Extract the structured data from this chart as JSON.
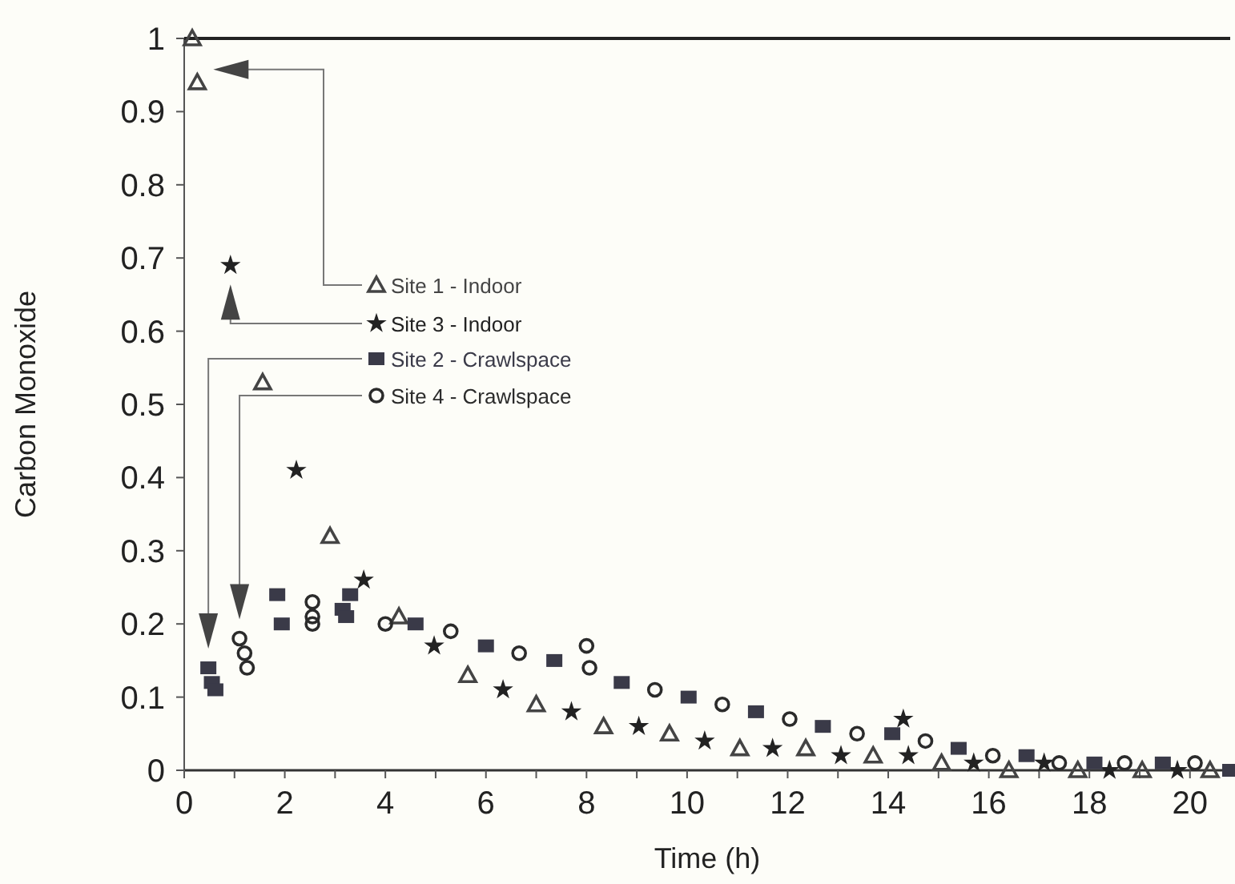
{
  "chart_data": {
    "type": "scatter",
    "xlabel": "Time (h)",
    "ylabel": "Carbon Monoxide",
    "xlim": [
      0,
      20.8
    ],
    "ylim": [
      0,
      1
    ],
    "xticks": [
      0,
      {
        "value": 1,
        "label": null
      },
      2,
      {
        "value": 3,
        "label": null
      },
      4,
      {
        "value": 5,
        "label": null
      },
      6,
      {
        "value": 7,
        "label": null
      },
      8,
      {
        "value": 9,
        "label": null
      },
      10,
      {
        "value": 11,
        "label": null
      },
      12,
      {
        "value": 13,
        "label": null
      },
      14,
      {
        "value": 15,
        "label": null
      },
      16,
      {
        "value": 17,
        "label": null
      },
      18,
      {
        "value": 19,
        "label": null
      },
      20
    ],
    "yticks": [
      0,
      0.1,
      0.2,
      0.3,
      0.4,
      0.5,
      0.6,
      0.7,
      0.8,
      0.9,
      1
    ],
    "grid": false,
    "legend": "left",
    "series": [
      {
        "name": "Site 1 - Indoor",
        "color": "#444444",
        "marker": "triangle",
        "x": [
          0.26,
          0.16,
          1.56,
          2.9,
          4.27,
          5.64,
          7.0,
          8.34,
          9.65,
          11.05,
          12.36,
          13.7,
          15.06,
          16.4,
          17.77,
          19.05,
          20.4
        ],
        "values": [
          0.94,
          1.0,
          0.53,
          0.32,
          0.21,
          0.13,
          0.09,
          0.06,
          0.05,
          0.03,
          0.03,
          0.02,
          0.01,
          0.0,
          0.0,
          0.0,
          0.0
        ]
      },
      {
        "name": "Site 3 - Indoor",
        "color": "#222222",
        "marker": "star",
        "x": [
          0.92,
          2.23,
          3.57,
          4.97,
          6.34,
          7.7,
          9.04,
          10.35,
          11.7,
          13.06,
          14.4,
          14.3,
          15.7,
          17.1,
          18.4,
          19.75
        ],
        "values": [
          0.69,
          0.41,
          0.26,
          0.17,
          0.11,
          0.08,
          0.06,
          0.04,
          0.03,
          0.02,
          0.02,
          0.07,
          0.01,
          0.01,
          0.0,
          0.0
        ]
      },
      {
        "name": "Site 2 - Crawlspace",
        "color": "#3a3a48",
        "marker": "square",
        "x": [
          0.48,
          0.55,
          0.62,
          1.85,
          1.94,
          3.15,
          3.3,
          3.22,
          4.6,
          6.0,
          7.36,
          8.7,
          10.03,
          11.37,
          12.7,
          14.08,
          15.4,
          16.75,
          18.1,
          19.46,
          20.8
        ],
        "values": [
          0.14,
          0.12,
          0.11,
          0.24,
          0.2,
          0.22,
          0.24,
          0.21,
          0.2,
          0.17,
          0.15,
          0.12,
          0.1,
          0.08,
          0.06,
          0.05,
          0.03,
          0.02,
          0.01,
          0.01,
          0.0
        ]
      },
      {
        "name": "Site 4 - Crawlspace",
        "color": "#2b2b2b",
        "marker": "circle",
        "x": [
          1.1,
          1.2,
          1.25,
          2.55,
          2.55,
          2.55,
          4.0,
          5.3,
          6.66,
          8.06,
          8.0,
          9.36,
          10.7,
          12.04,
          13.38,
          14.74,
          16.08,
          17.4,
          18.7,
          20.1
        ],
        "values": [
          0.18,
          0.16,
          0.14,
          0.23,
          0.21,
          0.2,
          0.2,
          0.19,
          0.16,
          0.14,
          0.17,
          0.11,
          0.09,
          0.07,
          0.05,
          0.04,
          0.02,
          0.01,
          0.01,
          0.01
        ]
      }
    ]
  }
}
